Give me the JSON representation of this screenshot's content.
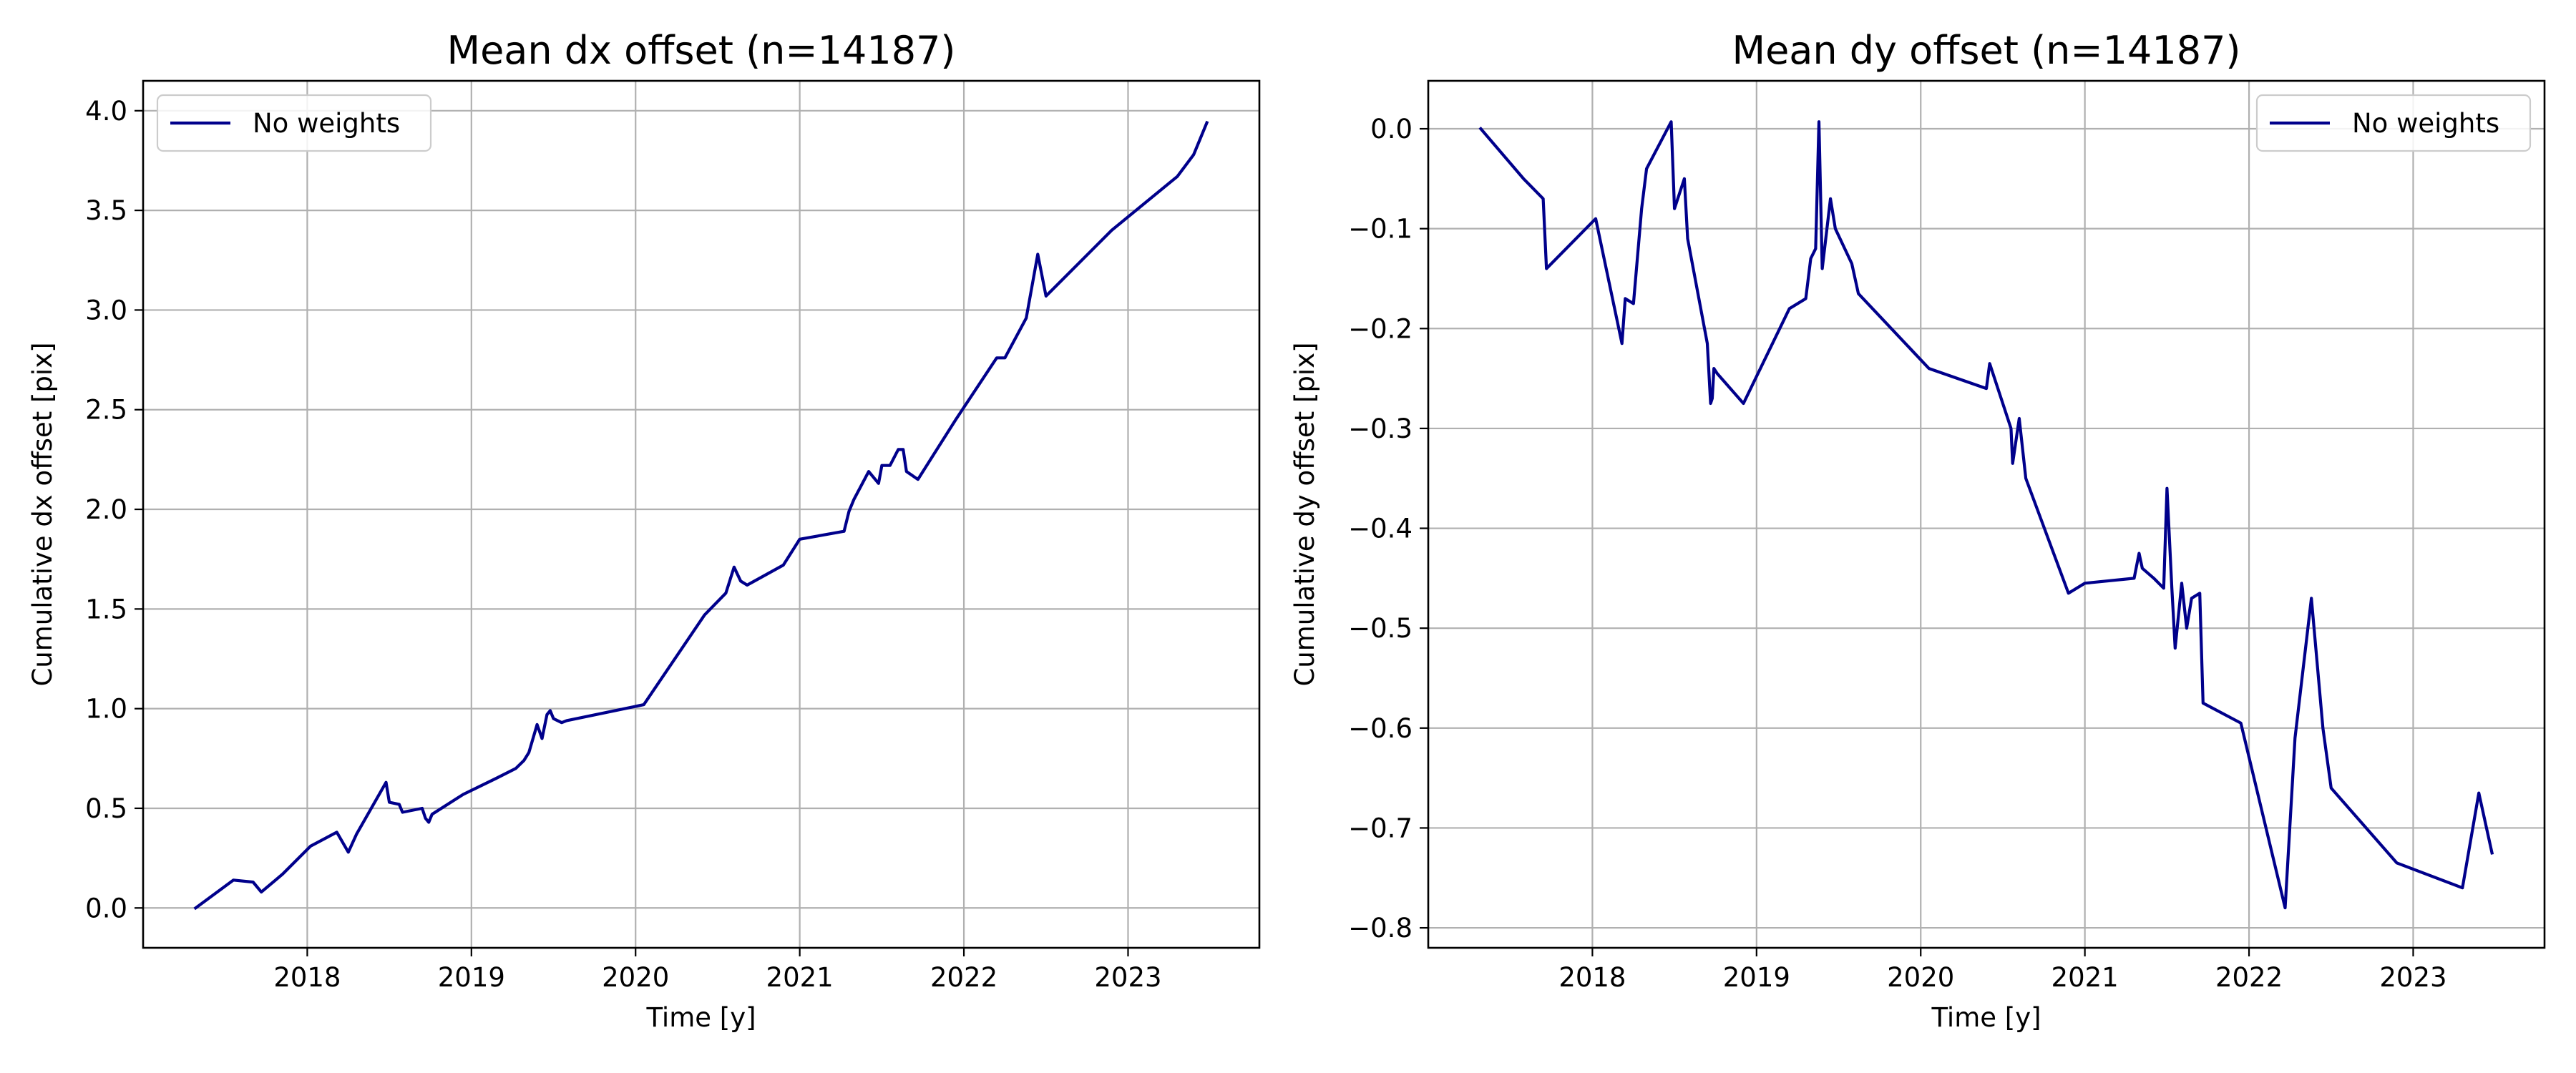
{
  "chart_data": [
    {
      "type": "line",
      "title": "Mean dx offset (n=14187)",
      "xlabel": "Time [y]",
      "ylabel": "Cumulative dx offset [pix]",
      "xlim": [
        2017.0,
        2023.8
      ],
      "ylim": [
        -0.2,
        4.15
      ],
      "xticks": [
        2018,
        2019,
        2020,
        2021,
        2022,
        2023
      ],
      "xtick_labels": [
        "2018",
        "2019",
        "2020",
        "2021",
        "2022",
        "2023"
      ],
      "yticks": [
        0.0,
        0.5,
        1.0,
        1.5,
        2.0,
        2.5,
        3.0,
        3.5,
        4.0
      ],
      "ytick_labels": [
        "0.0",
        "0.5",
        "1.0",
        "1.5",
        "2.0",
        "2.5",
        "3.0",
        "3.5",
        "4.0"
      ],
      "grid": true,
      "legend": "upper left",
      "series": [
        {
          "name": "No weights",
          "color": "#00008b",
          "x": [
            2017.32,
            2017.55,
            2017.67,
            2017.72,
            2017.85,
            2018.02,
            2018.18,
            2018.25,
            2018.3,
            2018.48,
            2018.5,
            2018.56,
            2018.58,
            2018.7,
            2018.72,
            2018.74,
            2018.76,
            2018.95,
            2019.15,
            2019.27,
            2019.32,
            2019.35,
            2019.4,
            2019.43,
            2019.46,
            2019.48,
            2019.5,
            2019.55,
            2019.58,
            2020.05,
            2020.42,
            2020.55,
            2020.6,
            2020.64,
            2020.68,
            2020.9,
            2021.0,
            2021.27,
            2021.3,
            2021.33,
            2021.42,
            2021.48,
            2021.5,
            2021.55,
            2021.6,
            2021.63,
            2021.65,
            2021.72,
            2021.95,
            2022.2,
            2022.25,
            2022.38,
            2022.45,
            2022.5,
            2022.9,
            2023.3,
            2023.4,
            2023.48
          ],
          "y": [
            0.0,
            0.14,
            0.13,
            0.08,
            0.17,
            0.31,
            0.38,
            0.28,
            0.37,
            0.63,
            0.53,
            0.52,
            0.48,
            0.5,
            0.45,
            0.43,
            0.47,
            0.57,
            0.65,
            0.7,
            0.74,
            0.78,
            0.92,
            0.85,
            0.97,
            0.99,
            0.95,
            0.93,
            0.94,
            1.02,
            1.47,
            1.58,
            1.71,
            1.64,
            1.62,
            1.72,
            1.85,
            1.89,
            1.99,
            2.05,
            2.19,
            2.13,
            2.22,
            2.22,
            2.3,
            2.3,
            2.19,
            2.15,
            2.45,
            2.76,
            2.76,
            2.96,
            3.28,
            3.07,
            3.4,
            3.67,
            3.78,
            3.94
          ]
        }
      ]
    },
    {
      "type": "line",
      "title": "Mean dy offset (n=14187)",
      "xlabel": "Time [y]",
      "ylabel": "Cumulative dy offset [pix]",
      "xlim": [
        2017.0,
        2023.8
      ],
      "ylim": [
        -0.82,
        0.048
      ],
      "xticks": [
        2018,
        2019,
        2020,
        2021,
        2022,
        2023
      ],
      "xtick_labels": [
        "2018",
        "2019",
        "2020",
        "2021",
        "2022",
        "2023"
      ],
      "yticks": [
        0.0,
        -0.1,
        -0.2,
        -0.3,
        -0.4,
        -0.5,
        -0.6,
        -0.7,
        -0.8
      ],
      "ytick_labels": [
        "0.0",
        "−0.1",
        "−0.2",
        "−0.3",
        "−0.4",
        "−0.5",
        "−0.6",
        "−0.7",
        "−0.8"
      ],
      "grid": true,
      "legend": "upper right",
      "series": [
        {
          "name": "No weights",
          "color": "#00008b",
          "x": [
            2017.32,
            2017.58,
            2017.7,
            2017.72,
            2018.02,
            2018.18,
            2018.2,
            2018.25,
            2018.3,
            2018.33,
            2018.48,
            2018.5,
            2018.56,
            2018.58,
            2018.7,
            2018.72,
            2018.73,
            2018.74,
            2018.76,
            2018.92,
            2019.2,
            2019.3,
            2019.33,
            2019.36,
            2019.38,
            2019.4,
            2019.45,
            2019.48,
            2019.58,
            2019.62,
            2020.05,
            2020.4,
            2020.42,
            2020.55,
            2020.56,
            2020.6,
            2020.64,
            2020.9,
            2021.0,
            2021.3,
            2021.33,
            2021.35,
            2021.42,
            2021.48,
            2021.5,
            2021.53,
            2021.55,
            2021.59,
            2021.62,
            2021.65,
            2021.7,
            2021.72,
            2021.95,
            2022.22,
            2022.28,
            2022.38,
            2022.45,
            2022.5,
            2022.9,
            2023.3,
            2023.4,
            2023.48
          ],
          "y": [
            0.0,
            -0.05,
            -0.07,
            -0.14,
            -0.09,
            -0.215,
            -0.17,
            -0.175,
            -0.08,
            -0.04,
            0.007,
            -0.08,
            -0.05,
            -0.11,
            -0.215,
            -0.275,
            -0.27,
            -0.24,
            -0.245,
            -0.275,
            -0.18,
            -0.17,
            -0.13,
            -0.12,
            0.007,
            -0.14,
            -0.07,
            -0.1,
            -0.135,
            -0.165,
            -0.24,
            -0.26,
            -0.235,
            -0.3,
            -0.335,
            -0.29,
            -0.35,
            -0.465,
            -0.455,
            -0.45,
            -0.425,
            -0.44,
            -0.45,
            -0.46,
            -0.36,
            -0.46,
            -0.52,
            -0.455,
            -0.5,
            -0.47,
            -0.465,
            -0.575,
            -0.595,
            -0.78,
            -0.61,
            -0.47,
            -0.6,
            -0.66,
            -0.735,
            -0.76,
            -0.665,
            -0.725
          ]
        }
      ]
    }
  ]
}
